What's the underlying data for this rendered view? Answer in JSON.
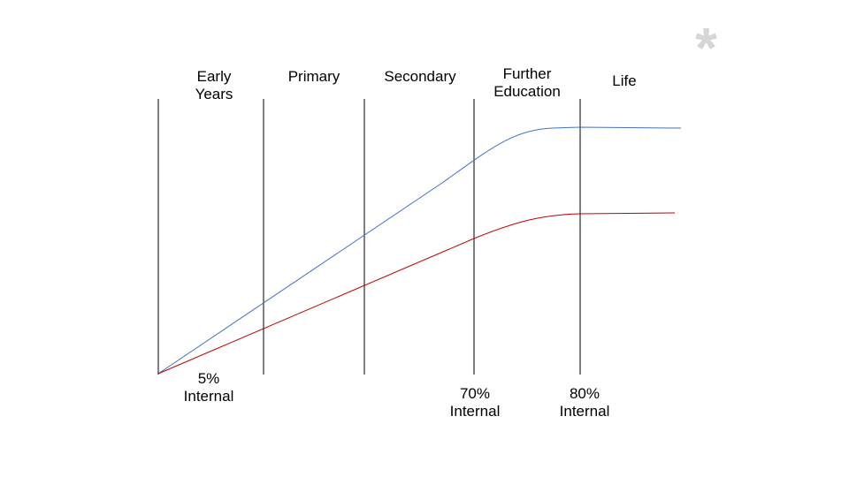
{
  "stages": [
    {
      "label": "Early\nYears"
    },
    {
      "label": "Primary"
    },
    {
      "label": "Secondary"
    },
    {
      "label": "Further\nEducation"
    },
    {
      "label": "Life"
    }
  ],
  "annotations": [
    {
      "label": "5%\nInternal"
    },
    {
      "label": "70%\nInternal"
    },
    {
      "label": "80%\nInternal"
    }
  ],
  "decoration": {
    "symbol": "*"
  },
  "colors": {
    "upper_curve": "#4472c4",
    "lower_curve": "#c00000",
    "dividers": "#000000",
    "decoration": "#d6d6d6"
  }
}
